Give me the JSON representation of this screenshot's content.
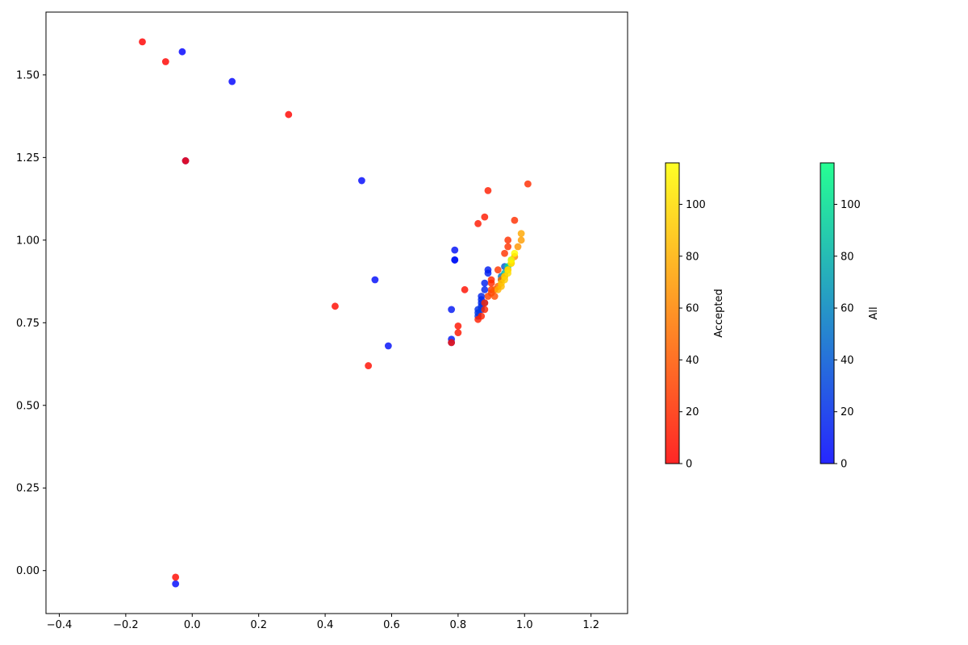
{
  "chart_data": {
    "type": "scatter",
    "xlim": [
      -0.44,
      1.31
    ],
    "ylim": [
      -0.13,
      1.69
    ],
    "x_ticks": [
      -0.4,
      -0.2,
      0.0,
      0.2,
      0.4,
      0.6,
      0.8,
      1.0,
      1.2
    ],
    "y_ticks": [
      0.0,
      0.25,
      0.5,
      0.75,
      1.0,
      1.25,
      1.5
    ],
    "x_tick_labels": [
      "−0.4",
      "−0.2",
      "0.0",
      "0.2",
      "0.4",
      "0.6",
      "0.8",
      "1.0",
      "1.2"
    ],
    "y_tick_labels": [
      "0.00",
      "0.25",
      "0.50",
      "0.75",
      "1.00",
      "1.25",
      "1.50"
    ],
    "grid": false,
    "series": [
      {
        "name": "All",
        "colormap": "winter",
        "points": [
          [
            -0.03,
            1.57,
            0
          ],
          [
            0.12,
            1.48,
            1
          ],
          [
            -0.02,
            1.24,
            2
          ],
          [
            0.51,
            1.18,
            3
          ],
          [
            -0.05,
            -0.04,
            4
          ],
          [
            0.55,
            0.88,
            5
          ],
          [
            0.59,
            0.68,
            6
          ],
          [
            0.79,
            0.97,
            7
          ],
          [
            0.79,
            0.94,
            8
          ],
          [
            0.79,
            0.94,
            9
          ],
          [
            0.78,
            0.79,
            10
          ],
          [
            0.78,
            0.7,
            11
          ],
          [
            0.78,
            0.69,
            12
          ],
          [
            0.89,
            0.91,
            13
          ],
          [
            0.89,
            0.9,
            14
          ],
          [
            0.88,
            0.87,
            15
          ],
          [
            0.88,
            0.85,
            16
          ],
          [
            0.87,
            0.83,
            17
          ],
          [
            0.87,
            0.82,
            18
          ],
          [
            0.87,
            0.81,
            19
          ],
          [
            0.87,
            0.8,
            20
          ],
          [
            0.86,
            0.79,
            22
          ],
          [
            0.86,
            0.78,
            24
          ],
          [
            0.86,
            0.77,
            26
          ],
          [
            0.87,
            0.79,
            28
          ],
          [
            0.88,
            0.81,
            30
          ],
          [
            0.94,
            0.92,
            40
          ],
          [
            0.93,
            0.89,
            55
          ],
          [
            0.93,
            0.88,
            70
          ],
          [
            0.94,
            0.9,
            85
          ],
          [
            0.95,
            0.92,
            100
          ],
          [
            0.96,
            0.94,
            115
          ]
        ]
      },
      {
        "name": "Accepted",
        "colormap": "autumn",
        "points": [
          [
            -0.15,
            1.6,
            0
          ],
          [
            -0.08,
            1.54,
            1
          ],
          [
            0.29,
            1.38,
            2
          ],
          [
            -0.02,
            1.24,
            3
          ],
          [
            -0.05,
            -0.02,
            4
          ],
          [
            0.43,
            0.8,
            5
          ],
          [
            0.53,
            0.62,
            6
          ],
          [
            0.82,
            0.85,
            7
          ],
          [
            0.78,
            0.69,
            8
          ],
          [
            0.8,
            0.74,
            9
          ],
          [
            0.8,
            0.72,
            10
          ],
          [
            0.86,
            1.05,
            11
          ],
          [
            0.88,
            1.07,
            12
          ],
          [
            0.89,
            1.15,
            13
          ],
          [
            0.86,
            0.76,
            14
          ],
          [
            0.87,
            0.77,
            15
          ],
          [
            0.88,
            0.79,
            16
          ],
          [
            0.88,
            0.81,
            17
          ],
          [
            0.9,
            0.88,
            18
          ],
          [
            0.9,
            0.87,
            19
          ],
          [
            1.01,
            1.17,
            20
          ],
          [
            0.97,
            1.06,
            21
          ],
          [
            0.95,
            1.0,
            22
          ],
          [
            0.95,
            0.98,
            23
          ],
          [
            0.94,
            0.96,
            24
          ],
          [
            0.92,
            0.91,
            25
          ],
          [
            0.9,
            0.85,
            26
          ],
          [
            0.89,
            0.83,
            28
          ],
          [
            0.9,
            0.84,
            32
          ],
          [
            0.91,
            0.83,
            36
          ],
          [
            0.91,
            0.85,
            40
          ],
          [
            0.92,
            0.86,
            44
          ],
          [
            0.93,
            0.88,
            48
          ],
          [
            0.94,
            0.89,
            52
          ],
          [
            0.95,
            0.91,
            56
          ],
          [
            0.96,
            0.93,
            60
          ],
          [
            0.97,
            0.95,
            64
          ],
          [
            0.98,
            0.98,
            68
          ],
          [
            0.99,
            1.0,
            72
          ],
          [
            0.99,
            1.02,
            76
          ],
          [
            0.92,
            0.85,
            80
          ],
          [
            0.93,
            0.86,
            84
          ],
          [
            0.93,
            0.87,
            88
          ],
          [
            0.94,
            0.88,
            92
          ],
          [
            0.94,
            0.89,
            96
          ],
          [
            0.95,
            0.9,
            100
          ],
          [
            0.95,
            0.91,
            104
          ],
          [
            0.96,
            0.93,
            108
          ],
          [
            0.96,
            0.94,
            112
          ],
          [
            0.97,
            0.96,
            115
          ]
        ]
      }
    ],
    "colorbars": [
      {
        "label": "Accepted",
        "colormap": "autumn",
        "range": [
          0,
          116
        ],
        "ticks": [
          0,
          20,
          40,
          60,
          80,
          100
        ],
        "tick_labels": [
          "0",
          "20",
          "40",
          "60",
          "80",
          "100"
        ]
      },
      {
        "label": "All",
        "colormap": "winter",
        "range": [
          0,
          116
        ],
        "ticks": [
          0,
          20,
          40,
          60,
          80,
          100
        ],
        "tick_labels": [
          "0",
          "20",
          "40",
          "60",
          "80",
          "100"
        ]
      }
    ],
    "colormaps": {
      "autumn": {
        "start": "#ff0000",
        "end": "#ffff00"
      },
      "winter": {
        "start": "#0000ff",
        "end": "#00ff80"
      }
    }
  }
}
